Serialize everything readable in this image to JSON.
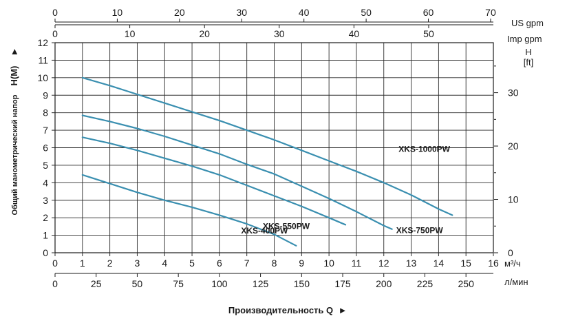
{
  "chart_data": {
    "type": "line",
    "x_label": "Производительность Q",
    "y_label_text": "Общий манометрический напор",
    "y_label_symbol": "H(M)",
    "x_unit_m3h": "м³/ч",
    "x_unit_lmin": "л/мин",
    "top_unit_us": "US gpm",
    "top_unit_imp": "Imp gpm",
    "right_unit_h": "H",
    "right_unit_ft": "[ft]",
    "xlim": [
      0,
      16
    ],
    "ylim": [
      0,
      12
    ],
    "x_ticks": [
      "0",
      "1",
      "2",
      "3",
      "4",
      "5",
      "6",
      "7",
      "8",
      "9",
      "10",
      "11",
      "12",
      "13",
      "14",
      "15",
      "16"
    ],
    "y_ticks": [
      "0",
      "1",
      "2",
      "3",
      "4",
      "5",
      "6",
      "7",
      "8",
      "9",
      "10",
      "11",
      "12"
    ],
    "lmin_ticks": [
      "0",
      "25",
      "50",
      "75",
      "100",
      "125",
      "150",
      "175",
      "200",
      "225",
      "250"
    ],
    "us_gpm_ticks": [
      "0",
      "10",
      "20",
      "30",
      "40",
      "50",
      "60",
      "70"
    ],
    "imp_gpm_ticks": [
      "0",
      "10",
      "20",
      "30",
      "40",
      "50"
    ],
    "ft_ticks": [
      "0",
      "10",
      "20",
      "30"
    ],
    "series": [
      {
        "name": "XKS-400PW",
        "x": [
          1,
          2,
          3,
          4,
          5,
          6,
          7,
          8,
          8.8
        ],
        "y": [
          4.45,
          3.95,
          3.45,
          3.0,
          2.6,
          2.15,
          1.65,
          1.05,
          0.4
        ]
      },
      {
        "name": "XKS-550PW",
        "x": [
          1,
          2,
          3,
          4,
          5,
          6,
          7,
          8,
          9,
          10,
          10.6
        ],
        "y": [
          6.6,
          6.25,
          5.85,
          5.4,
          4.95,
          4.45,
          3.85,
          3.25,
          2.65,
          2.0,
          1.6
        ]
      },
      {
        "name": "XKS-750PW",
        "x": [
          1,
          2,
          3,
          4,
          5,
          6,
          7,
          8,
          9,
          10,
          11,
          12,
          12.3
        ],
        "y": [
          7.85,
          7.5,
          7.1,
          6.65,
          6.15,
          5.65,
          5.05,
          4.5,
          3.8,
          3.1,
          2.35,
          1.55,
          1.35
        ]
      },
      {
        "name": "XKS-1000PW",
        "x": [
          1,
          2,
          3,
          4,
          5,
          6,
          7,
          8,
          9,
          10,
          11,
          12,
          13,
          14,
          14.5
        ],
        "y": [
          10.0,
          9.55,
          9.05,
          8.55,
          8.05,
          7.55,
          7.0,
          6.45,
          5.85,
          5.25,
          4.65,
          4.0,
          3.3,
          2.5,
          2.15
        ]
      }
    ]
  }
}
